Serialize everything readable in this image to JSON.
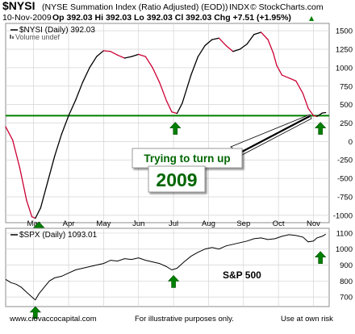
{
  "header": {
    "symbol": "$NYSI",
    "description": "(NYSE Summation Index (Ratio Adjusted) (EOD))",
    "exchange": "INDX",
    "copyright": "© StockCharts.com",
    "date": "10-Nov-2009",
    "quote": "Op 392.03  Hi 392.03  Lo 392.03  Cl 392.03  Chg +7.51 (+1.95%)",
    "up_arrow": "▲"
  },
  "chart_data": [
    {
      "type": "line",
      "legend": "$NYSI (Daily) 392.03",
      "volume_label": "Volume undef",
      "x_tick_labels": [
        "Mar",
        "Apr",
        "May",
        "Jun",
        "Jul",
        "Aug",
        "Sep",
        "Oct",
        "Nov"
      ],
      "x_tick_positions": [
        1.0,
        2.0,
        3.0,
        4.0,
        5.0,
        6.0,
        7.0,
        8.0,
        9.0
      ],
      "xlim": [
        0.2,
        9.45
      ],
      "ylim": [
        -1100,
        1600
      ],
      "y_ticks": [
        -1000,
        -750,
        -500,
        -250,
        0,
        250,
        500,
        750,
        1000,
        1250,
        1500
      ],
      "horizontal_line": 350,
      "grid": true,
      "series": [
        {
          "color_up": "#000000",
          "color_down": "#cc0033",
          "points": [
            [
              0.2,
              200
            ],
            [
              0.4,
              20
            ],
            [
              0.6,
              -350
            ],
            [
              0.8,
              -800
            ],
            [
              0.95,
              -1020
            ],
            [
              1.05,
              -1040
            ],
            [
              1.2,
              -900
            ],
            [
              1.4,
              -550
            ],
            [
              1.6,
              -200
            ],
            [
              1.8,
              100
            ],
            [
              2.0,
              350
            ],
            [
              2.2,
              560
            ],
            [
              2.4,
              800
            ],
            [
              2.6,
              1000
            ],
            [
              2.8,
              1150
            ],
            [
              3.0,
              1230
            ],
            [
              3.2,
              1220
            ],
            [
              3.4,
              1170
            ],
            [
              3.6,
              1130
            ],
            [
              3.8,
              1150
            ],
            [
              4.0,
              1180
            ],
            [
              4.2,
              1150
            ],
            [
              4.4,
              1000
            ],
            [
              4.6,
              800
            ],
            [
              4.8,
              550
            ],
            [
              4.95,
              400
            ],
            [
              5.1,
              380
            ],
            [
              5.25,
              520
            ],
            [
              5.5,
              900
            ],
            [
              5.7,
              1150
            ],
            [
              5.9,
              1300
            ],
            [
              6.1,
              1380
            ],
            [
              6.3,
              1400
            ],
            [
              6.5,
              1300
            ],
            [
              6.7,
              1220
            ],
            [
              6.9,
              1250
            ],
            [
              7.1,
              1320
            ],
            [
              7.3,
              1450
            ],
            [
              7.5,
              1480
            ],
            [
              7.7,
              1380
            ],
            [
              7.85,
              1200
            ],
            [
              7.95,
              1030
            ],
            [
              8.1,
              900
            ],
            [
              8.3,
              860
            ],
            [
              8.5,
              820
            ],
            [
              8.7,
              650
            ],
            [
              8.85,
              450
            ],
            [
              9.0,
              350
            ],
            [
              9.1,
              340
            ],
            [
              9.25,
              385
            ],
            [
              9.35,
              392
            ]
          ]
        }
      ],
      "markers": [
        {
          "x": 1.15,
          "y": -1090
        },
        {
          "x": 5.05,
          "y": 260
        },
        {
          "x": 9.2,
          "y": 260
        }
      ],
      "annotations": [
        {
          "text": "Trying to turn up",
          "color": "#006600",
          "bg": "#ffffff"
        },
        {
          "text": "2009",
          "color": "#006600",
          "bg": "#ffffff"
        }
      ]
    },
    {
      "type": "line",
      "legend": "$SPX (Daily) 1093.01",
      "label": "S&P 500",
      "xlim": [
        0.2,
        9.45
      ],
      "ylim": [
        640,
        1130
      ],
      "y_ticks": [
        700,
        800,
        900,
        1000,
        1100
      ],
      "grid": true,
      "series": [
        {
          "color": "#000000",
          "points": [
            [
              0.2,
              810
            ],
            [
              0.35,
              790
            ],
            [
              0.5,
              780
            ],
            [
              0.65,
              760
            ],
            [
              0.8,
              730
            ],
            [
              0.95,
              700
            ],
            [
              1.05,
              682
            ],
            [
              1.15,
              720
            ],
            [
              1.3,
              760
            ],
            [
              1.45,
              800
            ],
            [
              1.6,
              820
            ],
            [
              1.8,
              830
            ],
            [
              2.0,
              850
            ],
            [
              2.2,
              870
            ],
            [
              2.4,
              880
            ],
            [
              2.6,
              890
            ],
            [
              2.8,
              900
            ],
            [
              3.0,
              910
            ],
            [
              3.2,
              930
            ],
            [
              3.4,
              925
            ],
            [
              3.6,
              940
            ],
            [
              3.8,
              935
            ],
            [
              4.0,
              945
            ],
            [
              4.2,
              930
            ],
            [
              4.4,
              920
            ],
            [
              4.6,
              910
            ],
            [
              4.8,
              890
            ],
            [
              4.95,
              870
            ],
            [
              5.1,
              880
            ],
            [
              5.3,
              920
            ],
            [
              5.5,
              955
            ],
            [
              5.7,
              980
            ],
            [
              5.9,
              1000
            ],
            [
              6.1,
              1010
            ],
            [
              6.3,
              1000
            ],
            [
              6.5,
              1020
            ],
            [
              6.7,
              1030
            ],
            [
              6.9,
              1040
            ],
            [
              7.1,
              1050
            ],
            [
              7.3,
              1065
            ],
            [
              7.5,
              1070
            ],
            [
              7.7,
              1060
            ],
            [
              7.9,
              1065
            ],
            [
              8.1,
              1080
            ],
            [
              8.3,
              1090
            ],
            [
              8.5,
              1085
            ],
            [
              8.7,
              1075
            ],
            [
              8.85,
              1045
            ],
            [
              9.0,
              1050
            ],
            [
              9.1,
              1070
            ],
            [
              9.25,
              1080
            ],
            [
              9.35,
              1093
            ]
          ]
        }
      ],
      "markers": [
        {
          "x": 1.05,
          "y": 640
        },
        {
          "x": 5.0,
          "y": 835
        },
        {
          "x": 9.2,
          "y": 985
        }
      ]
    }
  ],
  "footer": {
    "website": "www.ciovaccocapital.com",
    "disclaimer": "For illustrative purposes only.",
    "risk": "Use at own risk"
  },
  "colors": {
    "grid": "#d4d4d4",
    "support_line": "#008000",
    "marker": "#008000",
    "frame": "#8c8c8c"
  }
}
